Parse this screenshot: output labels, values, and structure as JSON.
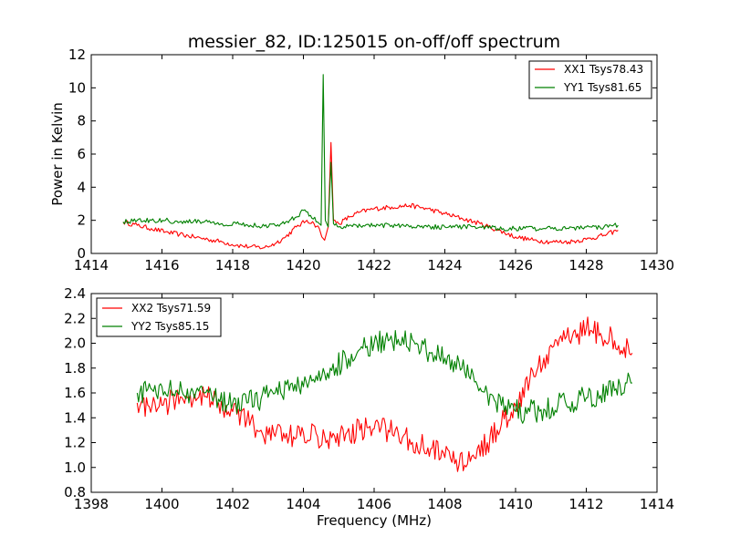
{
  "chart_data": [
    {
      "type": "line",
      "title": "messier_82, ID:125015 on-off/off spectrum",
      "xlabel": "",
      "ylabel": "Power in Kelvin",
      "xlim": [
        1414,
        1430
      ],
      "ylim": [
        0,
        12
      ],
      "xticks": [
        1414,
        1416,
        1418,
        1420,
        1422,
        1424,
        1426,
        1428,
        1430
      ],
      "yticks": [
        0,
        2,
        4,
        6,
        8,
        10,
        12
      ],
      "grid": false,
      "legend": "top-right",
      "series": [
        {
          "name": "XX1 Tsys78.43",
          "color": "#ff0000",
          "x": [
            1414.9,
            1415.3,
            1415.7,
            1416.1,
            1416.5,
            1416.9,
            1417.3,
            1417.7,
            1418.1,
            1418.5,
            1418.9,
            1419.2,
            1419.5,
            1419.8,
            1420.1,
            1420.3,
            1420.45,
            1420.52,
            1420.6,
            1420.7,
            1420.78,
            1420.85,
            1421.0,
            1421.3,
            1421.6,
            1422.0,
            1422.5,
            1423.0,
            1423.5,
            1424.0,
            1424.5,
            1425.0,
            1425.5,
            1426.0,
            1426.5,
            1427.0,
            1427.5,
            1428.0,
            1428.5,
            1428.9
          ],
          "y": [
            1.9,
            1.7,
            1.5,
            1.3,
            1.15,
            1.0,
            0.85,
            0.7,
            0.5,
            0.4,
            0.35,
            0.6,
            1.0,
            1.6,
            2.0,
            1.8,
            1.5,
            1.0,
            0.8,
            1.6,
            6.7,
            2.0,
            1.8,
            2.2,
            2.5,
            2.7,
            2.8,
            2.9,
            2.7,
            2.4,
            2.1,
            1.8,
            1.4,
            1.0,
            0.8,
            0.7,
            0.7,
            0.85,
            1.1,
            1.4
          ]
        },
        {
          "name": "YY1 Tsys81.65",
          "color": "#008000",
          "x": [
            1414.9,
            1415.3,
            1415.7,
            1416.1,
            1416.5,
            1416.9,
            1417.3,
            1417.7,
            1418.1,
            1418.5,
            1418.9,
            1419.2,
            1419.5,
            1419.8,
            1420.0,
            1420.2,
            1420.4,
            1420.5,
            1420.56,
            1420.62,
            1420.7,
            1420.78,
            1420.85,
            1421.0,
            1421.5,
            1422.0,
            1422.5,
            1423.0,
            1423.5,
            1424.0,
            1424.5,
            1425.0,
            1425.5,
            1426.0,
            1426.5,
            1427.0,
            1427.5,
            1428.0,
            1428.5,
            1428.9
          ],
          "y": [
            1.9,
            2.0,
            2.0,
            2.0,
            1.9,
            1.95,
            1.9,
            1.8,
            1.8,
            1.7,
            1.65,
            1.7,
            1.9,
            2.2,
            2.6,
            2.3,
            1.9,
            1.7,
            10.8,
            2.0,
            1.6,
            5.5,
            1.8,
            1.6,
            1.7,
            1.7,
            1.7,
            1.6,
            1.6,
            1.6,
            1.6,
            1.6,
            1.5,
            1.5,
            1.5,
            1.5,
            1.5,
            1.6,
            1.6,
            1.7
          ]
        }
      ]
    },
    {
      "type": "line",
      "title": "",
      "xlabel": "Frequency (MHz)",
      "ylabel": "",
      "xlim": [
        1398,
        1414
      ],
      "ylim": [
        0.8,
        2.4
      ],
      "xticks": [
        1398,
        1400,
        1402,
        1404,
        1406,
        1408,
        1410,
        1412,
        1414
      ],
      "yticks": [
        0.8,
        1.0,
        1.2,
        1.4,
        1.6,
        1.8,
        2.0,
        2.2,
        2.4
      ],
      "grid": false,
      "legend": "top-left",
      "series": [
        {
          "name": "XX2 Tsys71.59",
          "color": "#ff0000",
          "x": [
            1399.3,
            1399.6,
            1400.0,
            1400.4,
            1400.8,
            1401.2,
            1401.6,
            1402.0,
            1402.4,
            1402.8,
            1403.2,
            1403.6,
            1404.0,
            1404.4,
            1404.8,
            1405.2,
            1405.6,
            1406.0,
            1406.4,
            1406.8,
            1407.2,
            1407.6,
            1408.0,
            1408.4,
            1408.8,
            1409.2,
            1409.6,
            1410.0,
            1410.4,
            1410.8,
            1411.2,
            1411.6,
            1412.0,
            1412.4,
            1412.8,
            1413.3
          ],
          "y": [
            1.52,
            1.5,
            1.5,
            1.55,
            1.58,
            1.57,
            1.52,
            1.45,
            1.38,
            1.3,
            1.25,
            1.25,
            1.28,
            1.25,
            1.24,
            1.27,
            1.3,
            1.31,
            1.3,
            1.24,
            1.2,
            1.15,
            1.08,
            1.02,
            1.1,
            1.2,
            1.35,
            1.5,
            1.7,
            1.88,
            1.98,
            2.05,
            2.12,
            2.08,
            2.02,
            1.92
          ]
        },
        {
          "name": "YY2 Tsys85.15",
          "color": "#008000",
          "x": [
            1399.3,
            1399.6,
            1400.0,
            1400.4,
            1400.8,
            1401.2,
            1401.6,
            1402.0,
            1402.4,
            1402.8,
            1403.2,
            1403.6,
            1404.0,
            1404.4,
            1404.8,
            1405.2,
            1405.6,
            1406.0,
            1406.4,
            1406.8,
            1407.2,
            1407.6,
            1408.0,
            1408.4,
            1408.8,
            1409.2,
            1409.6,
            1410.0,
            1410.4,
            1410.8,
            1411.2,
            1411.6,
            1412.0,
            1412.4,
            1412.8,
            1413.3
          ],
          "y": [
            1.6,
            1.63,
            1.65,
            1.62,
            1.6,
            1.6,
            1.55,
            1.52,
            1.52,
            1.55,
            1.6,
            1.62,
            1.65,
            1.7,
            1.78,
            1.88,
            1.95,
            2.0,
            2.02,
            2.05,
            2.0,
            1.92,
            1.88,
            1.85,
            1.75,
            1.6,
            1.5,
            1.45,
            1.45,
            1.47,
            1.5,
            1.53,
            1.56,
            1.58,
            1.62,
            1.68
          ]
        }
      ]
    }
  ]
}
